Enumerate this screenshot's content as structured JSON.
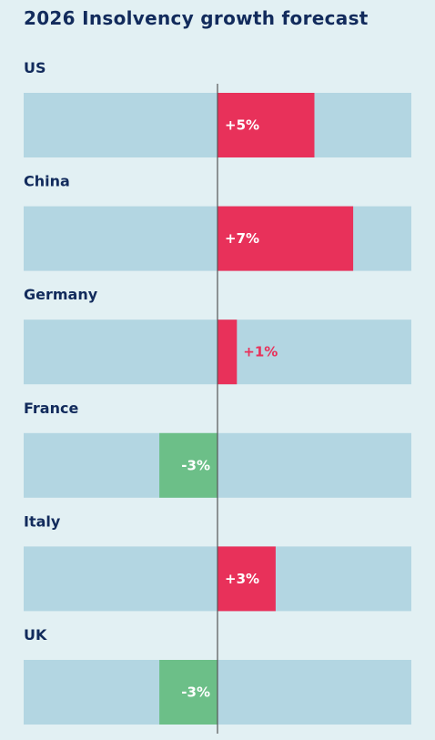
{
  "chart_data": {
    "type": "bar",
    "orientation": "horizontal",
    "title": "2026 Insolvency growth forecast",
    "categories": [
      "US",
      "China",
      "Germany",
      "France",
      "Italy",
      "UK"
    ],
    "values": [
      5,
      7,
      1,
      -3,
      3,
      -3
    ],
    "labels": [
      "+5%",
      "+7%",
      "+1%",
      "-3%",
      "+3%",
      "-3%"
    ],
    "xlim": [
      -10,
      10
    ],
    "colors": {
      "positive": "#e8315a",
      "negative": "#6cbf88",
      "track": "#b3d6e2",
      "axis": "#555555"
    }
  }
}
